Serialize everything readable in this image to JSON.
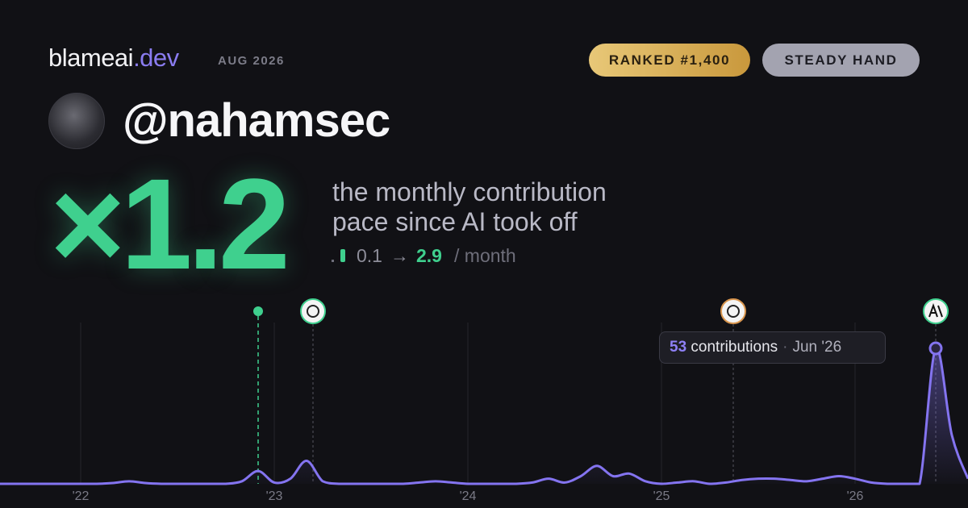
{
  "header": {
    "brand": "blameai",
    "tld": ".dev",
    "date": "AUG 2026",
    "rank": "RANKED #1,400",
    "badge": "STEADY HAND"
  },
  "profile": {
    "handle": "@nahamsec"
  },
  "headline": {
    "multiplier": "×1.2",
    "description": [
      "the monthly contribution",
      "pace since AI took off"
    ],
    "pace": {
      "before": "0.1",
      "arrow": "→",
      "after": "2.9",
      "unit": "/ month"
    }
  },
  "chart_data": {
    "type": "area",
    "categories": [
      null,
      null,
      null,
      null,
      null,
      "'22",
      null,
      null,
      null,
      null,
      null,
      null,
      null,
      null,
      null,
      null,
      null,
      "'23",
      null,
      null,
      null,
      null,
      null,
      null,
      null,
      null,
      null,
      null,
      null,
      "'24",
      null,
      null,
      null,
      null,
      null,
      null,
      null,
      null,
      null,
      null,
      null,
      "'25",
      null,
      null,
      null,
      null,
      null,
      null,
      null,
      null,
      null,
      null,
      null,
      "'26",
      null,
      null,
      null,
      null,
      null,
      null,
      null
    ],
    "series": [
      {
        "name": "contributions",
        "color": "#8474f0",
        "values": [
          0,
          0,
          0,
          0,
          0,
          0,
          0,
          0.3,
          1,
          0.3,
          0,
          0,
          0,
          0,
          0,
          1,
          5,
          0.5,
          2,
          9,
          1,
          0,
          0,
          0,
          0,
          0,
          0.5,
          1,
          0.5,
          0,
          0,
          0,
          0,
          0.5,
          2,
          0.5,
          3,
          7,
          3,
          4,
          1,
          0,
          0.5,
          1,
          0,
          0.5,
          1.5,
          2,
          2,
          1.5,
          1,
          2,
          3,
          2,
          0.5,
          0,
          0,
          0,
          53,
          19,
          2
        ]
      }
    ],
    "tooltip": {
      "unit": "contributions",
      "date": "Jun '26"
    }
  }
}
